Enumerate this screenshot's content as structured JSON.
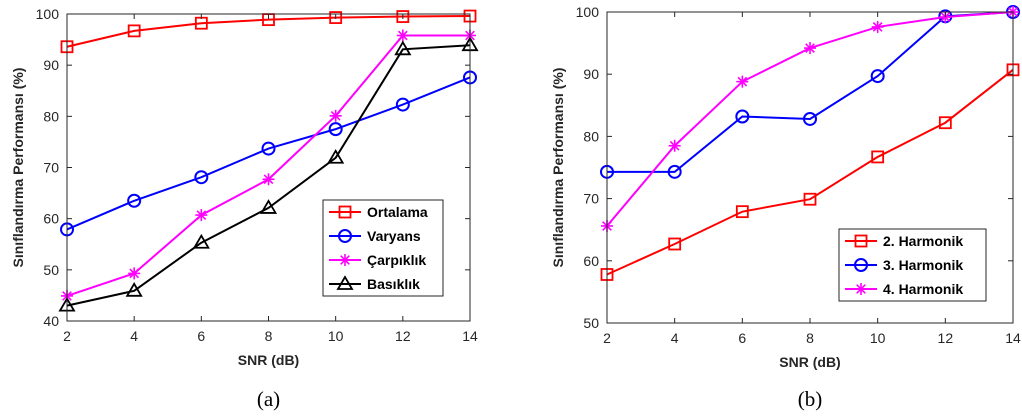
{
  "chart_data": [
    {
      "type": "line",
      "caption": "(a)",
      "xlabel": "SNR (dB)",
      "ylabel": "Sınıflandırma Performansı (%)",
      "x": [
        2,
        4,
        6,
        8,
        10,
        12,
        14
      ],
      "xlim": [
        2,
        14
      ],
      "ylim": [
        40,
        100
      ],
      "xticks": [
        2,
        4,
        6,
        8,
        10,
        12,
        14
      ],
      "yticks": [
        40,
        50,
        60,
        70,
        80,
        90,
        100
      ],
      "legend_position": "lower-right",
      "series": [
        {
          "name": "Ortalama",
          "color": "#ff0000",
          "marker": "square",
          "values": [
            93.6,
            96.7,
            98.2,
            98.9,
            99.3,
            99.5,
            99.6
          ]
        },
        {
          "name": "Varyans",
          "color": "#0000ff",
          "marker": "circle",
          "values": [
            57.9,
            63.5,
            68.1,
            73.7,
            77.5,
            82.3,
            87.6
          ]
        },
        {
          "name": "Çarpıklık",
          "color": "#ff00ff",
          "marker": "asterisk",
          "values": [
            44.9,
            49.3,
            60.7,
            67.7,
            80.1,
            95.8,
            95.8
          ]
        },
        {
          "name": "Basıklık",
          "color": "#000000",
          "marker": "triangle",
          "values": [
            43.0,
            45.9,
            55.3,
            62.1,
            71.9,
            93.1,
            93.9
          ]
        }
      ]
    },
    {
      "type": "line",
      "caption": "(b)",
      "xlabel": "SNR (dB)",
      "ylabel": "Sınıflandırma Performansı (%)",
      "x": [
        2,
        4,
        6,
        8,
        10,
        12,
        14
      ],
      "xlim": [
        2,
        14
      ],
      "ylim": [
        50,
        100
      ],
      "xticks": [
        2,
        4,
        6,
        8,
        10,
        12,
        14
      ],
      "yticks": [
        50,
        60,
        70,
        80,
        90,
        100
      ],
      "legend_position": "lower-right",
      "series": [
        {
          "name": "2. Harmonik",
          "color": "#ff0000",
          "marker": "square",
          "values": [
            57.8,
            62.7,
            67.9,
            69.9,
            76.7,
            82.2,
            90.7
          ]
        },
        {
          "name": "3. Harmonik",
          "color": "#0000ff",
          "marker": "circle",
          "values": [
            74.3,
            74.3,
            83.2,
            82.8,
            89.7,
            99.3,
            100
          ]
        },
        {
          "name": "4. Harmonik",
          "color": "#ff00ff",
          "marker": "asterisk",
          "values": [
            65.6,
            78.5,
            88.8,
            94.2,
            97.6,
            99.2,
            100
          ]
        }
      ]
    }
  ]
}
